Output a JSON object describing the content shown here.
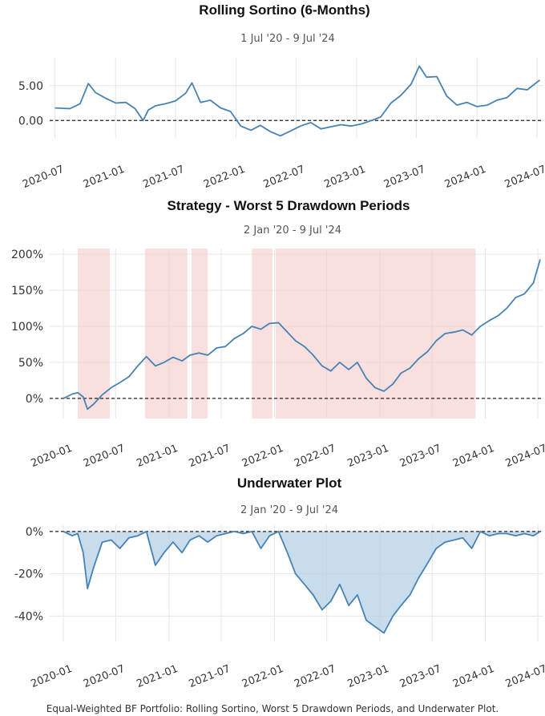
{
  "caption": "Equal-Weighted BF Portfolio: Rolling Sortino, Worst 5 Drawdown Periods, and Underwater Plot.",
  "colors": {
    "line": "#4682b4",
    "shade": "#f4c7c5",
    "underwater_fill": "#b7d0e6",
    "zero_line": "#222222"
  },
  "chart_data": [
    {
      "type": "line",
      "title": "Rolling Sortino (6-Months)",
      "subtitle": "1 Jul '20 - 9 Jul '24",
      "x_range": [
        "2020-06-15",
        "2024-07-20"
      ],
      "ylim": [
        -2.5,
        9.0
      ],
      "yticks": [
        5,
        0
      ],
      "ytick_labels": [
        "5.00",
        "0.00"
      ],
      "xticks": [
        "2020-07-01",
        "2021-01-01",
        "2021-07-01",
        "2022-01-01",
        "2022-07-01",
        "2023-01-01",
        "2023-07-01",
        "2024-01-01",
        "2024-07-01"
      ],
      "xtick_labels": [
        "2020-07",
        "2021-01",
        "2021-07",
        "2022-01",
        "2022-07",
        "2023-01",
        "2023-07",
        "2024-01",
        "2024-07"
      ],
      "grid": true,
      "zero_line": true,
      "series": [
        {
          "x": [
            "2020-07-01",
            "2020-08-15",
            "2020-09-15",
            "2020-10-10",
            "2020-11-01",
            "2020-12-01",
            "2021-01-01",
            "2021-02-01",
            "2021-03-01",
            "2021-03-25",
            "2021-04-10",
            "2021-05-01",
            "2021-06-01",
            "2021-07-01",
            "2021-08-01",
            "2021-08-20",
            "2021-09-15",
            "2021-10-15",
            "2021-11-15",
            "2021-12-15",
            "2022-01-15",
            "2022-02-15",
            "2022-03-15",
            "2022-04-15",
            "2022-05-15",
            "2022-06-15",
            "2022-07-15",
            "2022-08-15",
            "2022-09-15",
            "2022-10-15",
            "2022-11-15",
            "2022-12-15",
            "2023-01-15",
            "2023-02-15",
            "2023-03-15",
            "2023-04-15",
            "2023-05-15",
            "2023-06-15",
            "2023-07-10",
            "2023-08-01",
            "2023-09-01",
            "2023-10-01",
            "2023-11-01",
            "2023-12-01",
            "2024-01-01",
            "2024-02-01",
            "2024-03-01",
            "2024-04-01",
            "2024-05-01",
            "2024-06-01",
            "2024-07-09"
          ],
          "values": [
            1.8,
            1.7,
            2.4,
            5.3,
            4.0,
            3.2,
            2.5,
            2.6,
            1.7,
            0.0,
            1.5,
            2.1,
            2.4,
            2.8,
            3.9,
            5.4,
            2.6,
            2.9,
            1.8,
            1.3,
            -0.8,
            -1.4,
            -0.7,
            -1.6,
            -2.2,
            -1.5,
            -0.8,
            -0.3,
            -1.2,
            -0.9,
            -0.6,
            -0.8,
            -0.5,
            0.0,
            0.5,
            2.5,
            3.6,
            5.2,
            7.8,
            6.2,
            6.3,
            3.5,
            2.2,
            2.6,
            2.0,
            2.2,
            2.9,
            3.3,
            4.6,
            4.4,
            5.8
          ]
        }
      ]
    },
    {
      "type": "line",
      "title": "Strategy - Worst 5 Drawdown Periods",
      "subtitle": "2 Jan '20 -  9 Jul '24",
      "x_range": [
        "2019-11-15",
        "2024-07-20"
      ],
      "ylim": [
        -28,
        208
      ],
      "yticks": [
        200,
        150,
        100,
        50,
        0
      ],
      "ytick_labels": [
        "200%",
        "150%",
        "100%",
        "50%",
        "0%"
      ],
      "xticks": [
        "2020-01-01",
        "2020-07-01",
        "2021-01-01",
        "2021-07-01",
        "2022-01-01",
        "2022-07-01",
        "2023-01-01",
        "2023-07-01",
        "2024-01-01",
        "2024-07-01"
      ],
      "xtick_labels": [
        "2020-01",
        "2020-07",
        "2021-01",
        "2021-07",
        "2022-01",
        "2022-07",
        "2023-01",
        "2023-07",
        "2024-01",
        "2024-07"
      ],
      "grid": true,
      "zero_line": true,
      "shaded_periods": [
        [
          "2020-02-20",
          "2020-06-10"
        ],
        [
          "2020-10-10",
          "2021-03-05"
        ],
        [
          "2021-03-20",
          "2021-05-15"
        ],
        [
          "2021-10-15",
          "2021-12-25"
        ],
        [
          "2022-01-05",
          "2023-11-28"
        ]
      ],
      "series": [
        {
          "x": [
            "2020-01-02",
            "2020-02-01",
            "2020-02-20",
            "2020-03-10",
            "2020-03-25",
            "2020-04-15",
            "2020-05-15",
            "2020-06-15",
            "2020-07-15",
            "2020-08-15",
            "2020-09-15",
            "2020-10-15",
            "2020-11-15",
            "2020-12-15",
            "2021-01-15",
            "2021-02-15",
            "2021-03-15",
            "2021-04-15",
            "2021-05-15",
            "2021-06-15",
            "2021-07-15",
            "2021-08-15",
            "2021-09-15",
            "2021-10-15",
            "2021-11-15",
            "2021-12-15",
            "2022-01-15",
            "2022-02-15",
            "2022-03-15",
            "2022-04-15",
            "2022-05-15",
            "2022-06-15",
            "2022-07-15",
            "2022-08-15",
            "2022-09-15",
            "2022-10-15",
            "2022-11-15",
            "2022-12-15",
            "2023-01-15",
            "2023-02-15",
            "2023-03-15",
            "2023-04-15",
            "2023-05-15",
            "2023-06-15",
            "2023-07-15",
            "2023-08-15",
            "2023-09-15",
            "2023-10-15",
            "2023-11-15",
            "2023-12-15",
            "2024-01-15",
            "2024-02-15",
            "2024-03-15",
            "2024-04-15",
            "2024-05-15",
            "2024-06-15",
            "2024-07-09"
          ],
          "values": [
            0,
            6,
            8,
            2,
            -15,
            -8,
            5,
            15,
            22,
            30,
            45,
            58,
            45,
            50,
            57,
            52,
            60,
            63,
            60,
            70,
            72,
            83,
            90,
            100,
            96,
            104,
            105,
            92,
            80,
            72,
            60,
            45,
            38,
            50,
            40,
            50,
            28,
            15,
            10,
            20,
            35,
            42,
            55,
            65,
            80,
            90,
            92,
            95,
            88,
            100,
            108,
            115,
            125,
            140,
            145,
            160,
            193
          ]
        }
      ]
    },
    {
      "type": "area",
      "title": "Underwater Plot",
      "subtitle": "2 Jan '20 -  9 Jul '24",
      "x_range": [
        "2019-11-15",
        "2024-07-20"
      ],
      "ylim": [
        -52,
        3
      ],
      "yticks": [
        0,
        -20,
        -40
      ],
      "ytick_labels": [
        "0%",
        "-20%",
        "-40%"
      ],
      "xticks": [
        "2020-01-01",
        "2020-07-01",
        "2021-01-01",
        "2021-07-01",
        "2022-01-01",
        "2022-07-01",
        "2023-01-01",
        "2023-07-01",
        "2024-01-01",
        "2024-07-01"
      ],
      "xtick_labels": [
        "2020-01",
        "2020-07",
        "2021-01",
        "2021-07",
        "2022-01",
        "2022-07",
        "2023-01",
        "2023-07",
        "2024-01",
        "2024-07"
      ],
      "grid": true,
      "zero_line": true,
      "series": [
        {
          "x": [
            "2020-01-02",
            "2020-02-01",
            "2020-02-20",
            "2020-03-10",
            "2020-03-25",
            "2020-04-15",
            "2020-05-15",
            "2020-06-15",
            "2020-07-15",
            "2020-08-15",
            "2020-09-15",
            "2020-10-15",
            "2020-11-15",
            "2020-12-15",
            "2021-01-15",
            "2021-02-15",
            "2021-03-15",
            "2021-04-15",
            "2021-05-15",
            "2021-06-15",
            "2021-07-15",
            "2021-08-15",
            "2021-09-15",
            "2021-10-15",
            "2021-11-15",
            "2021-12-15",
            "2022-01-15",
            "2022-02-15",
            "2022-03-15",
            "2022-04-15",
            "2022-05-15",
            "2022-06-15",
            "2022-07-15",
            "2022-08-15",
            "2022-09-15",
            "2022-10-15",
            "2022-11-15",
            "2022-12-15",
            "2023-01-15",
            "2023-02-15",
            "2023-03-15",
            "2023-04-15",
            "2023-05-15",
            "2023-06-15",
            "2023-07-15",
            "2023-08-15",
            "2023-09-15",
            "2023-10-15",
            "2023-11-15",
            "2023-12-15",
            "2024-01-15",
            "2024-02-15",
            "2024-03-15",
            "2024-04-15",
            "2024-05-15",
            "2024-06-15",
            "2024-07-09"
          ],
          "values": [
            0,
            -2,
            -1,
            -10,
            -27,
            -17,
            -5,
            -4,
            -8,
            -3,
            -2,
            0,
            -16,
            -10,
            -5,
            -10,
            -4,
            -2,
            -5,
            -2,
            -1,
            0,
            -1,
            0,
            -8,
            -2,
            0,
            -10,
            -20,
            -25,
            -30,
            -37,
            -33,
            -25,
            -35,
            -30,
            -42,
            -45,
            -48,
            -40,
            -35,
            -30,
            -22,
            -15,
            -8,
            -5,
            -4,
            -3,
            -8,
            0,
            -2,
            -1,
            -1,
            -2,
            -1,
            -2,
            0
          ]
        }
      ]
    }
  ]
}
